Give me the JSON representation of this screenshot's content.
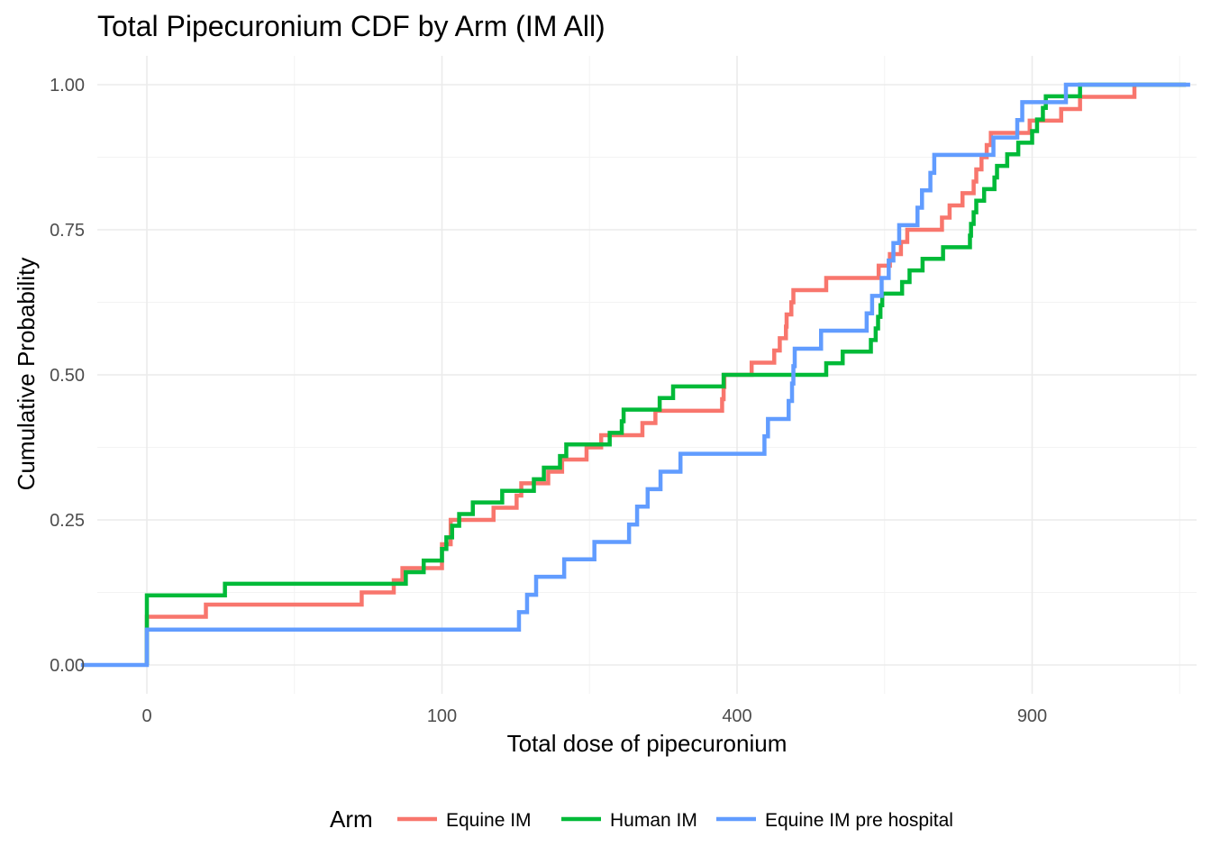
{
  "chart_data": {
    "type": "line",
    "step": true,
    "title": "Total Pipecuronium CDF by Arm (IM All)",
    "xlabel": "Total dose of pipecuronium",
    "ylabel": "Cumulative Probability",
    "x_scale": "sqrt",
    "xlim": [
      0,
      1211
    ],
    "ylim": [
      0,
      1
    ],
    "x_ticks": [
      0,
      100,
      400,
      900
    ],
    "x_tick_labels": [
      "0",
      "100",
      "400",
      "900"
    ],
    "y_ticks": [
      0,
      0.25,
      0.5,
      0.75,
      1
    ],
    "y_tick_labels": [
      "0.00",
      "0.25",
      "0.50",
      "0.75",
      "1.00"
    ],
    "grid": true,
    "legend": {
      "title": "Arm",
      "position": "bottom"
    },
    "series": [
      {
        "name": "Equine IM",
        "color": "#F8766D",
        "points": [
          [
            0,
            0.083
          ],
          [
            4,
            0.104
          ],
          [
            53,
            0.125
          ],
          [
            70,
            0.146
          ],
          [
            75,
            0.167
          ],
          [
            100,
            0.208
          ],
          [
            106,
            0.25
          ],
          [
            138,
            0.271
          ],
          [
            157,
            0.292
          ],
          [
            161,
            0.313
          ],
          [
            185,
            0.333
          ],
          [
            198,
            0.354
          ],
          [
            222,
            0.375
          ],
          [
            237,
            0.396
          ],
          [
            282,
            0.417
          ],
          [
            297,
            0.438
          ],
          [
            380,
            0.458
          ],
          [
            382,
            0.479
          ],
          [
            383,
            0.5
          ],
          [
            420,
            0.521
          ],
          [
            452,
            0.542
          ],
          [
            460,
            0.563
          ],
          [
            469,
            0.583
          ],
          [
            470,
            0.604
          ],
          [
            477,
            0.625
          ],
          [
            480,
            0.646
          ],
          [
            530,
            0.667
          ],
          [
            615,
            0.688
          ],
          [
            634,
            0.708
          ],
          [
            653,
            0.729
          ],
          [
            664,
            0.75
          ],
          [
            726,
            0.771
          ],
          [
            740,
            0.792
          ],
          [
            764,
            0.813
          ],
          [
            785,
            0.833
          ],
          [
            790,
            0.854
          ],
          [
            800,
            0.875
          ],
          [
            810,
            0.896
          ],
          [
            818,
            0.917
          ],
          [
            895,
            0.938
          ],
          [
            960,
            0.958
          ],
          [
            1000,
            0.979
          ],
          [
            1120,
            1
          ]
        ]
      },
      {
        "name": "Human IM",
        "color": "#00BA38",
        "points": [
          [
            0,
            0.12
          ],
          [
            7,
            0.14
          ],
          [
            77,
            0.16
          ],
          [
            88,
            0.18
          ],
          [
            100,
            0.2
          ],
          [
            103,
            0.22
          ],
          [
            107,
            0.24
          ],
          [
            112,
            0.26
          ],
          [
            122,
            0.28
          ],
          [
            145,
            0.3
          ],
          [
            172,
            0.32
          ],
          [
            181,
            0.34
          ],
          [
            196,
            0.36
          ],
          [
            202,
            0.38
          ],
          [
            246,
            0.4
          ],
          [
            259,
            0.42
          ],
          [
            261,
            0.44
          ],
          [
            302,
            0.46
          ],
          [
            318,
            0.48
          ],
          [
            382,
            0.5
          ],
          [
            530,
            0.52
          ],
          [
            556,
            0.54
          ],
          [
            602,
            0.56
          ],
          [
            610,
            0.58
          ],
          [
            614,
            0.6
          ],
          [
            618,
            0.62
          ],
          [
            621,
            0.64
          ],
          [
            655,
            0.66
          ],
          [
            668,
            0.68
          ],
          [
            691,
            0.7
          ],
          [
            728,
            0.72
          ],
          [
            778,
            0.74
          ],
          [
            780,
            0.76
          ],
          [
            785,
            0.78
          ],
          [
            790,
            0.8
          ],
          [
            805,
            0.82
          ],
          [
            825,
            0.84
          ],
          [
            830,
            0.86
          ],
          [
            850,
            0.88
          ],
          [
            872,
            0.9
          ],
          [
            900,
            0.92
          ],
          [
            910,
            0.94
          ],
          [
            922,
            0.96
          ],
          [
            928,
            0.98
          ],
          [
            1000,
            1
          ]
        ]
      },
      {
        "name": "Equine IM pre hospital",
        "color": "#619CFF",
        "points": [
          [
            -5,
            0
          ],
          [
            0,
            0.061
          ],
          [
            159,
            0.091
          ],
          [
            166,
            0.121
          ],
          [
            174,
            0.152
          ],
          [
            200,
            0.182
          ],
          [
            230,
            0.212
          ],
          [
            267,
            0.242
          ],
          [
            276,
            0.273
          ],
          [
            288,
            0.303
          ],
          [
            303,
            0.333
          ],
          [
            327,
            0.364
          ],
          [
            438,
            0.394
          ],
          [
            443,
            0.424
          ],
          [
            473,
            0.455
          ],
          [
            478,
            0.485
          ],
          [
            480,
            0.515
          ],
          [
            482,
            0.545
          ],
          [
            522,
            0.576
          ],
          [
            595,
            0.606
          ],
          [
            604,
            0.636
          ],
          [
            620,
            0.667
          ],
          [
            632,
            0.697
          ],
          [
            640,
            0.727
          ],
          [
            650,
            0.758
          ],
          [
            682,
            0.788
          ],
          [
            690,
            0.818
          ],
          [
            705,
            0.848
          ],
          [
            712,
            0.879
          ],
          [
            823,
            0.909
          ],
          [
            870,
            0.939
          ],
          [
            880,
            0.97
          ],
          [
            970,
            1
          ],
          [
            1250,
            1
          ]
        ]
      }
    ]
  }
}
